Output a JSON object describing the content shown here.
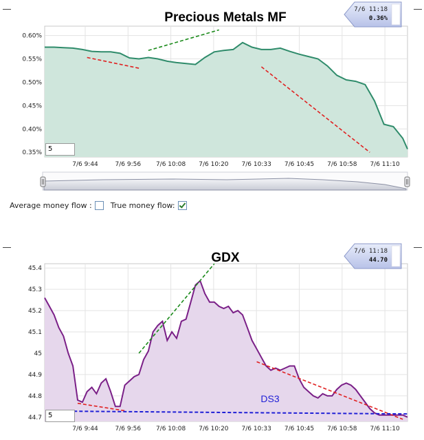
{
  "controls": {
    "avg_label": "Average money flow :",
    "true_label": "True money flow:",
    "avg_checked": false,
    "true_checked": true
  },
  "chart_data": [
    {
      "type": "area",
      "title": "Precious Metals MF",
      "tooltip": {
        "date": "7/6 11:18",
        "value": "0.36%"
      },
      "input_value": "5",
      "x_ticks": [
        "7/6 9:44",
        "7/6 9:56",
        "7/6 10:08",
        "7/6 10:20",
        "7/6 10:33",
        "7/6 10:45",
        "7/6 10:58",
        "7/6 11:10"
      ],
      "y_ticks": [
        "0.60%",
        "0.55%",
        "0.50%",
        "0.45%",
        "0.40%",
        "0.35%"
      ],
      "ylim": [
        0.34,
        0.62
      ],
      "xlim": [
        0,
        77
      ],
      "line_color": "#2e8b6a",
      "fill_color": "#cfe6dc",
      "series": [
        {
          "x": [
            0,
            2,
            4,
            6,
            8,
            10,
            12,
            14,
            16,
            18,
            20,
            22,
            24,
            26,
            28,
            30,
            32,
            34,
            36,
            38,
            40,
            42,
            44,
            46,
            48,
            50,
            52,
            54,
            56,
            58,
            60,
            62,
            64,
            66,
            68,
            70,
            72,
            74,
            76,
            77
          ],
          "values": [
            0.575,
            0.575,
            0.574,
            0.573,
            0.57,
            0.566,
            0.565,
            0.565,
            0.562,
            0.552,
            0.55,
            0.553,
            0.55,
            0.545,
            0.542,
            0.54,
            0.538,
            0.553,
            0.565,
            0.568,
            0.57,
            0.585,
            0.575,
            0.57,
            0.57,
            0.573,
            0.566,
            0.56,
            0.555,
            0.55,
            0.535,
            0.515,
            0.505,
            0.502,
            0.495,
            0.46,
            0.41,
            0.405,
            0.38,
            0.357
          ]
        }
      ],
      "trendlines": [
        {
          "color": "#e02020",
          "points": [
            [
              9,
              0.553
            ],
            [
              20,
              0.53
            ]
          ]
        },
        {
          "color": "#1a8a1a",
          "points": [
            [
              22,
              0.568
            ],
            [
              37,
              0.612
            ]
          ]
        },
        {
          "color": "#e02020",
          "points": [
            [
              46,
              0.533
            ],
            [
              69,
              0.35
            ]
          ]
        }
      ]
    },
    {
      "type": "area",
      "title": "GDX",
      "annotation": "DS3",
      "tooltip": {
        "date": "7/6 11:18",
        "value": "44.70"
      },
      "input_value": "5",
      "x_ticks": [
        "7/6 9:44",
        "7/6 9:56",
        "7/6 10:08",
        "7/6 10:20",
        "7/6 10:33",
        "7/6 10:45",
        "7/6 10:58",
        "7/6 11:10"
      ],
      "y_ticks": [
        "45.4",
        "45.3",
        "45.2",
        "45.1",
        "45",
        "44.9",
        "44.8",
        "44.7"
      ],
      "ylim": [
        44.68,
        45.42
      ],
      "xlim": [
        0,
        77
      ],
      "line_color": "#7a1f87",
      "fill_color": "#e6d7ec",
      "series": [
        {
          "x": [
            0,
            1,
            2,
            3,
            4,
            5,
            6,
            7,
            8,
            9,
            10,
            11,
            12,
            13,
            14,
            15,
            16,
            17,
            18,
            19,
            20,
            21,
            22,
            23,
            24,
            25,
            26,
            27,
            28,
            29,
            30,
            31,
            32,
            33,
            34,
            35,
            36,
            37,
            38,
            39,
            40,
            41,
            42,
            43,
            44,
            45,
            46,
            47,
            48,
            49,
            50,
            51,
            52,
            53,
            54,
            55,
            56,
            57,
            58,
            59,
            60,
            61,
            62,
            63,
            64,
            65,
            66,
            67,
            68,
            69,
            70,
            71,
            72,
            73,
            74,
            75,
            76,
            77
          ],
          "values": [
            45.26,
            45.22,
            45.18,
            45.12,
            45.08,
            45.0,
            44.94,
            44.78,
            44.77,
            44.82,
            44.84,
            44.81,
            44.86,
            44.88,
            44.82,
            44.75,
            44.75,
            44.85,
            44.87,
            44.89,
            44.9,
            44.97,
            45.01,
            45.1,
            45.13,
            45.15,
            45.06,
            45.1,
            45.07,
            45.15,
            45.16,
            45.24,
            45.32,
            45.34,
            45.28,
            45.24,
            45.24,
            45.22,
            45.21,
            45.22,
            45.19,
            45.2,
            45.18,
            45.12,
            45.06,
            45.02,
            44.98,
            44.94,
            44.92,
            44.93,
            44.92,
            44.93,
            44.94,
            44.94,
            44.88,
            44.84,
            44.82,
            44.8,
            44.79,
            44.81,
            44.8,
            44.8,
            44.83,
            44.85,
            44.86,
            44.85,
            44.83,
            44.8,
            44.77,
            44.74,
            44.72,
            44.71,
            44.71,
            44.71,
            44.71,
            44.71,
            44.71,
            44.7
          ]
        }
      ],
      "trendlines": [
        {
          "color": "#e02020",
          "points": [
            [
              7,
              44.765
            ],
            [
              17,
              44.73
            ]
          ],
          "style": "dashed"
        },
        {
          "color": "#1a8a1a",
          "points": [
            [
              20,
              45.0
            ],
            [
              36,
              45.42
            ]
          ],
          "style": "dashed"
        },
        {
          "color": "#e02020",
          "points": [
            [
              45,
              44.96
            ],
            [
              76,
              44.69
            ]
          ],
          "style": "dashed"
        },
        {
          "color": "#1f1fd6",
          "points": [
            [
              5,
              44.728
            ],
            [
              77,
              44.715
            ]
          ],
          "style": "dashed",
          "width": 2
        }
      ]
    }
  ]
}
